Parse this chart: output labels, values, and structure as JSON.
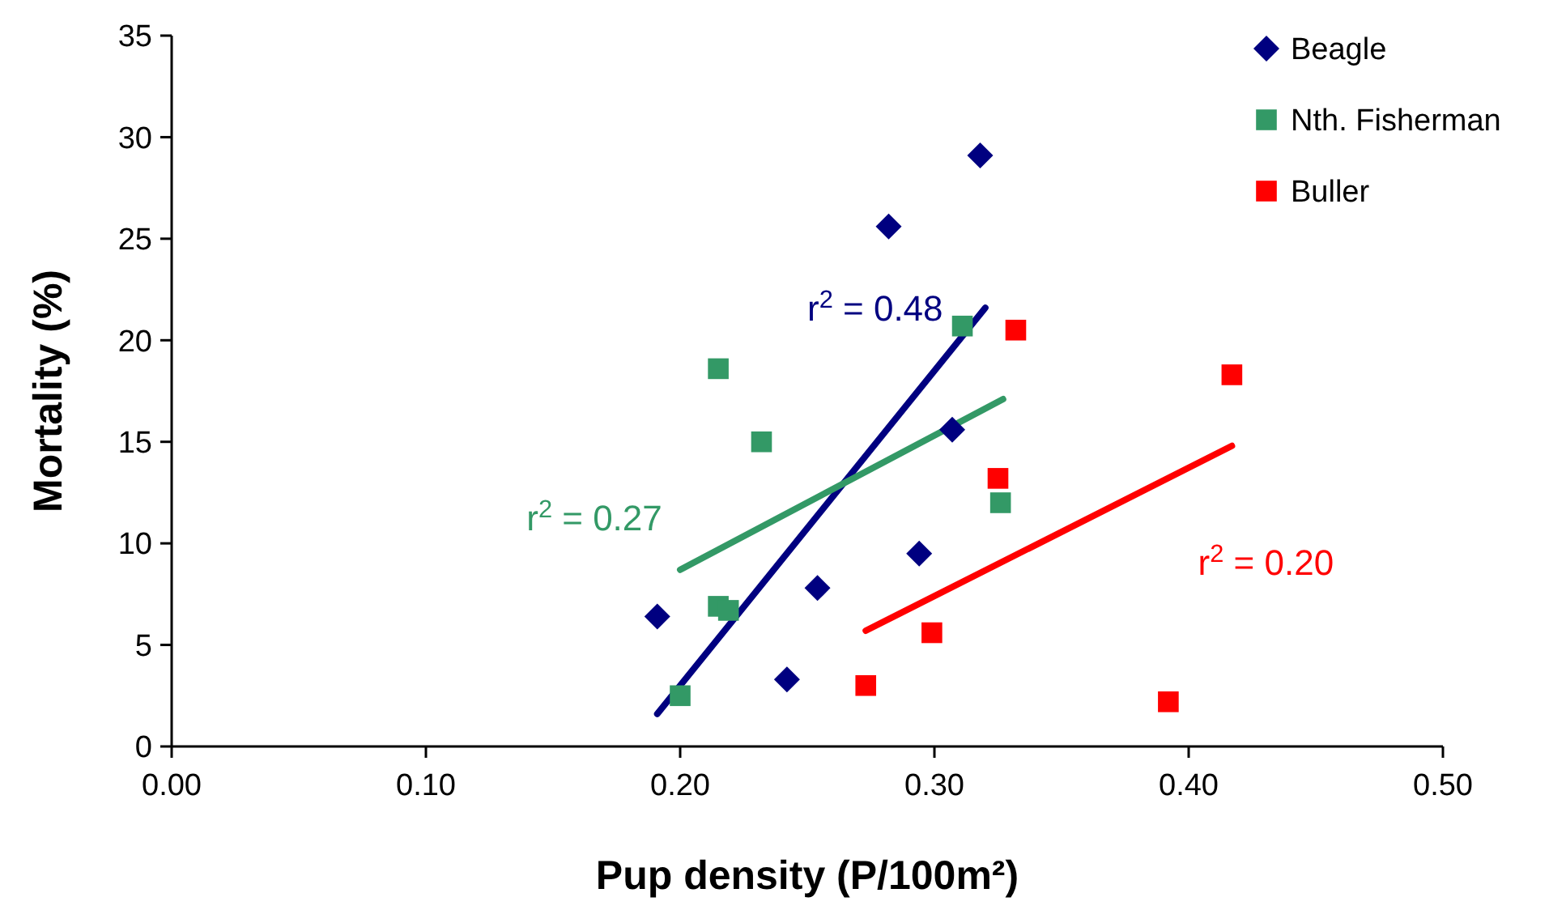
{
  "chart_data": {
    "type": "scatter",
    "xlabel": "Pup density (P/100m²)",
    "ylabel": "Mortality (%)",
    "xlim": [
      0,
      0.5
    ],
    "xticks": [
      {
        "value": 0,
        "label": "0.00"
      },
      {
        "value": 0.1,
        "label": "0.10"
      },
      {
        "value": 0.2,
        "label": "0.20"
      },
      {
        "value": 0.3,
        "label": "0.30"
      },
      {
        "value": 0.4,
        "label": "0.40"
      },
      {
        "value": 0.5,
        "label": "0.50"
      }
    ],
    "ylim": [
      0,
      35
    ],
    "yticks": [
      0,
      5,
      10,
      15,
      20,
      25,
      30,
      35
    ],
    "grid": false,
    "legend": "top right",
    "series": [
      {
        "name": "Beagle",
        "color": "#000080",
        "marker": "diamond",
        "x": [
          0.191,
          0.242,
          0.254,
          0.282,
          0.294,
          0.307,
          0.318
        ],
        "values": [
          6.4,
          3.3,
          7.8,
          25.6,
          9.5,
          15.6,
          29.1
        ]
      },
      {
        "name": "Nth. Fisherman",
        "color": "#339966",
        "marker": "square",
        "x": [
          0.2,
          0.215,
          0.219,
          0.215,
          0.232,
          0.311,
          0.326
        ],
        "values": [
          2.5,
          6.9,
          6.7,
          18.6,
          15.0,
          20.7,
          12.0
        ]
      },
      {
        "name": "Buller",
        "color": "#ff0000",
        "marker": "square",
        "x": [
          0.273,
          0.299,
          0.325,
          0.332,
          0.392,
          0.417
        ],
        "values": [
          3.0,
          5.6,
          13.2,
          20.5,
          2.2,
          18.3
        ]
      },
      {
        "type": "line",
        "color": "#000080",
        "x": [
          0.191,
          0.32
        ],
        "values": [
          1.6,
          21.6
        ]
      },
      {
        "type": "line",
        "color": "#339966",
        "x": [
          0.2,
          0.327
        ],
        "values": [
          8.7,
          17.1
        ]
      },
      {
        "type": "line",
        "color": "#ff0000",
        "x": [
          0.273,
          0.417
        ],
        "values": [
          5.7,
          14.8
        ]
      }
    ],
    "annotations": [
      "r$^{2}$ = 0.48",
      "r$^{2}$ = 0.27",
      "r$^{2}$ = 0.20"
    ]
  }
}
